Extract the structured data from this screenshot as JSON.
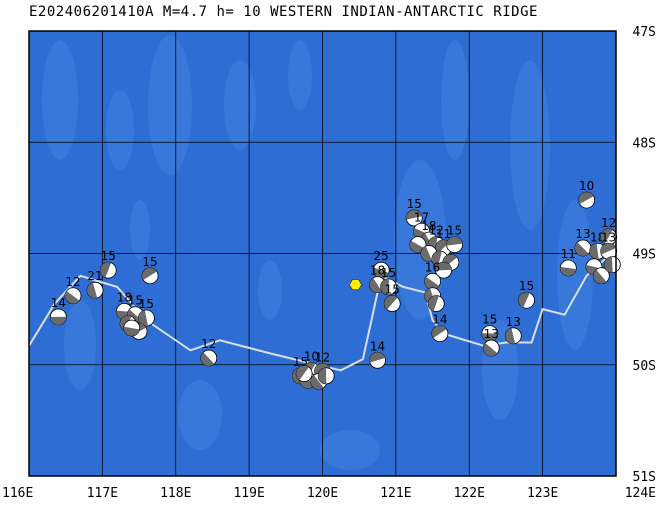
{
  "title": "E202406201410A M=4.7 h= 10 WESTERN INDIAN-ANTARCTIC RIDGE",
  "colors": {
    "ocean": "#2e6ed4",
    "ocean_light": "#3f82df",
    "grid": "#000000",
    "ridge": "#d8dde8",
    "epicenter": "#ffee00"
  },
  "map": {
    "lon_range": [
      116,
      124
    ],
    "lat_range": [
      -51,
      -47
    ],
    "lon_ticks": [
      "116E",
      "117E",
      "118E",
      "119E",
      "120E",
      "121E",
      "122E",
      "123E",
      "124E"
    ],
    "lat_ticks": [
      "47S",
      "48S",
      "49S",
      "50S",
      "51S"
    ]
  },
  "epicenter": {
    "lon": 120.45,
    "lat": -49.28
  },
  "ridge_line": [
    [
      116.0,
      -49.83
    ],
    [
      116.35,
      -49.45
    ],
    [
      116.7,
      -49.2
    ],
    [
      117.2,
      -49.3
    ],
    [
      117.6,
      -49.6
    ],
    [
      118.2,
      -49.87
    ],
    [
      118.6,
      -49.78
    ],
    [
      119.3,
      -49.9
    ],
    [
      119.8,
      -49.98
    ],
    [
      120.25,
      -50.05
    ],
    [
      120.55,
      -49.95
    ],
    [
      120.8,
      -49.2
    ],
    [
      121.1,
      -49.3
    ],
    [
      121.4,
      -49.35
    ],
    [
      121.5,
      -49.6
    ],
    [
      121.65,
      -49.72
    ],
    [
      122.2,
      -49.83
    ],
    [
      122.5,
      -49.8
    ],
    [
      122.85,
      -49.8
    ],
    [
      123.0,
      -49.5
    ],
    [
      123.3,
      -49.55
    ],
    [
      123.6,
      -49.2
    ],
    [
      123.85,
      -49.05
    ],
    [
      124.0,
      -48.9
    ]
  ],
  "events": [
    {
      "lon": 116.4,
      "lat": -49.57,
      "label": "14"
    },
    {
      "lon": 116.6,
      "lat": -49.38,
      "label": "12"
    },
    {
      "lon": 116.9,
      "lat": -49.33,
      "label": "21"
    },
    {
      "lon": 117.08,
      "lat": -49.15,
      "label": "15"
    },
    {
      "lon": 117.65,
      "lat": -49.2,
      "label": "15"
    },
    {
      "lon": 117.3,
      "lat": -49.52,
      "label": "18"
    },
    {
      "lon": 117.45,
      "lat": -49.55,
      "label": "15"
    },
    {
      "lon": 117.6,
      "lat": -49.58,
      "label": "15"
    },
    {
      "lon": 117.35,
      "lat": -49.63,
      "label": ""
    },
    {
      "lon": 117.5,
      "lat": -49.7,
      "label": ""
    },
    {
      "lon": 117.4,
      "lat": -49.67,
      "label": ""
    },
    {
      "lon": 118.45,
      "lat": -49.94,
      "label": "12"
    },
    {
      "lon": 119.7,
      "lat": -50.1,
      "label": "15"
    },
    {
      "lon": 119.85,
      "lat": -50.05,
      "label": "10"
    },
    {
      "lon": 120.0,
      "lat": -50.06,
      "label": "12"
    },
    {
      "lon": 119.8,
      "lat": -50.14,
      "label": ""
    },
    {
      "lon": 119.95,
      "lat": -50.15,
      "label": ""
    },
    {
      "lon": 120.05,
      "lat": -50.1,
      "label": ""
    },
    {
      "lon": 119.75,
      "lat": -50.08,
      "label": ""
    },
    {
      "lon": 120.75,
      "lat": -49.96,
      "label": "14"
    },
    {
      "lon": 120.8,
      "lat": -49.15,
      "label": "25"
    },
    {
      "lon": 120.75,
      "lat": -49.28,
      "label": "18"
    },
    {
      "lon": 120.9,
      "lat": -49.3,
      "label": "15"
    },
    {
      "lon": 120.95,
      "lat": -49.45,
      "label": "15"
    },
    {
      "lon": 121.25,
      "lat": -48.68,
      "label": "15"
    },
    {
      "lon": 121.35,
      "lat": -48.8,
      "label": "17"
    },
    {
      "lon": 121.45,
      "lat": -48.88,
      "label": "18"
    },
    {
      "lon": 121.55,
      "lat": -48.92,
      "label": "12"
    },
    {
      "lon": 121.65,
      "lat": -48.95,
      "label": "11"
    },
    {
      "lon": 121.8,
      "lat": -48.92,
      "label": "15"
    },
    {
      "lon": 121.3,
      "lat": -48.92,
      "label": ""
    },
    {
      "lon": 121.45,
      "lat": -49.0,
      "label": ""
    },
    {
      "lon": 121.6,
      "lat": -49.05,
      "label": ""
    },
    {
      "lon": 121.75,
      "lat": -49.08,
      "label": ""
    },
    {
      "lon": 121.65,
      "lat": -49.15,
      "label": ""
    },
    {
      "lon": 121.5,
      "lat": -49.25,
      "label": "16"
    },
    {
      "lon": 121.5,
      "lat": -49.38,
      "label": ""
    },
    {
      "lon": 121.55,
      "lat": -49.45,
      "label": ""
    },
    {
      "lon": 121.6,
      "lat": -49.72,
      "label": "14"
    },
    {
      "lon": 122.28,
      "lat": -49.72,
      "label": "15"
    },
    {
      "lon": 122.3,
      "lat": -49.85,
      "label": "13"
    },
    {
      "lon": 122.6,
      "lat": -49.74,
      "label": "13"
    },
    {
      "lon": 122.78,
      "lat": -49.42,
      "label": "15"
    },
    {
      "lon": 123.6,
      "lat": -48.52,
      "label": "10"
    },
    {
      "lon": 123.35,
      "lat": -49.13,
      "label": "11"
    },
    {
      "lon": 123.55,
      "lat": -48.95,
      "label": "13"
    },
    {
      "lon": 123.75,
      "lat": -48.98,
      "label": "18"
    },
    {
      "lon": 123.9,
      "lat": -48.85,
      "label": "12"
    },
    {
      "lon": 123.9,
      "lat": -48.98,
      "label": "13"
    },
    {
      "lon": 123.7,
      "lat": -49.12,
      "label": ""
    },
    {
      "lon": 123.8,
      "lat": -49.2,
      "label": ""
    },
    {
      "lon": 123.95,
      "lat": -49.1,
      "label": ""
    }
  ]
}
